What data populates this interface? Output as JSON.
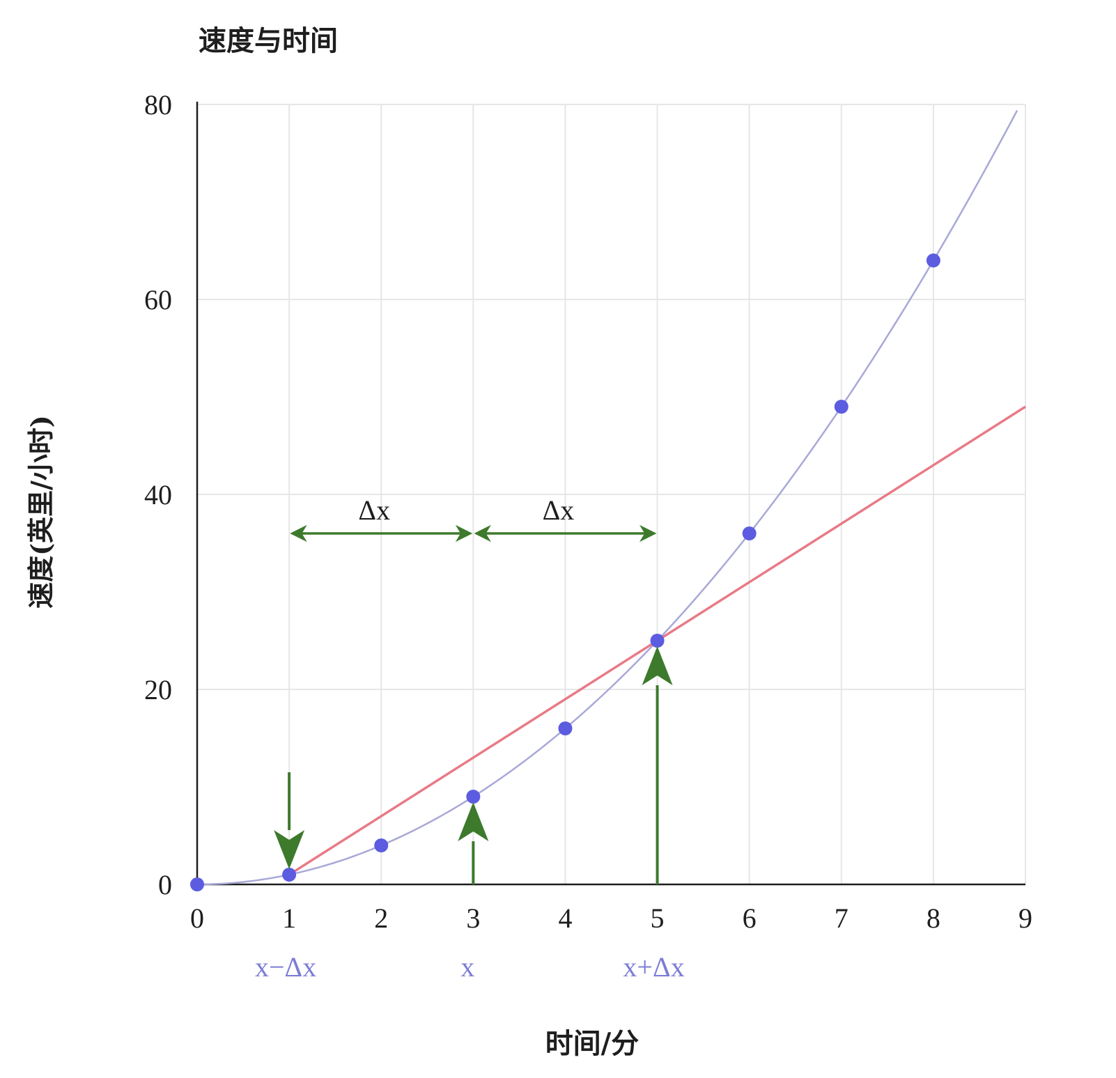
{
  "chart_data": {
    "type": "scatter",
    "title": "速度与时间",
    "xlabel": "时间/分",
    "ylabel": "速度(英里/小时)",
    "xlim": [
      0,
      9
    ],
    "ylim": [
      0,
      80
    ],
    "x_ticks": [
      "0",
      "1",
      "2",
      "3",
      "4",
      "5",
      "6",
      "7",
      "8",
      "9"
    ],
    "y_ticks": [
      "0",
      "20",
      "40",
      "60",
      "80"
    ],
    "grid": true,
    "series": [
      {
        "kind": "points",
        "x": [
          0,
          1,
          2,
          3,
          4,
          5,
          6,
          7,
          8
        ],
        "y": [
          0,
          1,
          4,
          9,
          16,
          25,
          36,
          49,
          64
        ]
      }
    ],
    "curve": {
      "formula": "y = x^2",
      "x_range": [
        0,
        9
      ]
    },
    "secant": {
      "from": [
        1,
        1
      ],
      "to": [
        5,
        25
      ],
      "extend_to_x": 9
    },
    "annotations": {
      "x_labels": [
        {
          "text": "x−Δx",
          "x": 1
        },
        {
          "text": "x",
          "x": 3
        },
        {
          "text": "x+Δx",
          "x": 5
        }
      ],
      "delta_spans": [
        {
          "text": "Δx",
          "from": 1,
          "to": 3,
          "y": 36
        },
        {
          "text": "Δx",
          "from": 3,
          "to": 5,
          "y": 36
        }
      ],
      "arrows": [
        {
          "x": 1,
          "direction": "down",
          "from_y": 11.5,
          "to_y": 1
        },
        {
          "x": 3,
          "direction": "up",
          "from_y": 0,
          "to_y": 9
        },
        {
          "x": 5,
          "direction": "up",
          "from_y": 0,
          "to_y": 25
        }
      ]
    },
    "colors": {
      "points": "#5c5ce0",
      "curve": "#a8a8d8",
      "secant": "#e87a86",
      "arrows": "#3d7a2c",
      "marker_labels": "#7c7cd6",
      "axis": "#1e1e1e",
      "grid": "#e6e6e6"
    }
  }
}
